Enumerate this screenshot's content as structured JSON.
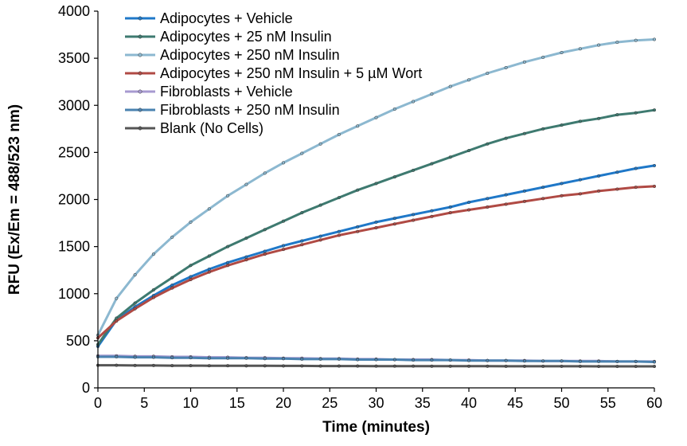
{
  "chart_data": {
    "type": "line",
    "title": "",
    "xlabel": "Time (minutes)",
    "ylabel": "RFU (Ex/Em = 488/523 nm)",
    "xlim": [
      0,
      60
    ],
    "ylim": [
      0,
      4000
    ],
    "x_ticks": [
      0,
      5,
      10,
      15,
      20,
      25,
      30,
      35,
      40,
      45,
      50,
      55,
      60
    ],
    "y_ticks": [
      0,
      500,
      1000,
      1500,
      2000,
      2500,
      3000,
      3500,
      4000
    ],
    "grid": false,
    "legend_position": "top-left",
    "marker": "small-circle",
    "x": [
      0,
      2,
      4,
      6,
      8,
      10,
      12,
      14,
      16,
      18,
      20,
      22,
      24,
      26,
      28,
      30,
      32,
      34,
      36,
      38,
      40,
      42,
      44,
      46,
      48,
      50,
      52,
      54,
      56,
      58,
      60
    ],
    "series": [
      {
        "name": "Adipocytes + Vehicle",
        "color": "#1f78c8",
        "values": [
          440,
          720,
          860,
          980,
          1090,
          1180,
          1260,
          1330,
          1390,
          1450,
          1510,
          1560,
          1610,
          1660,
          1710,
          1760,
          1800,
          1840,
          1880,
          1920,
          1970,
          2010,
          2050,
          2090,
          2130,
          2170,
          2210,
          2250,
          2290,
          2330,
          2360
        ]
      },
      {
        "name": "Adipocytes + 25 nM Insulin",
        "color": "#3e7a70",
        "values": [
          460,
          740,
          900,
          1040,
          1170,
          1300,
          1400,
          1500,
          1590,
          1680,
          1770,
          1860,
          1940,
          2020,
          2100,
          2170,
          2240,
          2310,
          2380,
          2450,
          2520,
          2590,
          2650,
          2700,
          2750,
          2790,
          2830,
          2860,
          2900,
          2920,
          2950
        ]
      },
      {
        "name": "Adipocytes + 250 nM Insulin",
        "color": "#8cb8d0",
        "values": [
          560,
          950,
          1200,
          1420,
          1600,
          1760,
          1900,
          2040,
          2160,
          2280,
          2390,
          2490,
          2590,
          2690,
          2780,
          2870,
          2960,
          3040,
          3120,
          3200,
          3270,
          3340,
          3400,
          3460,
          3510,
          3560,
          3600,
          3640,
          3670,
          3690,
          3700
        ]
      },
      {
        "name": "Adipocytes + 250 nM Insulin + 5 µM Wort",
        "color": "#b04a44",
        "values": [
          530,
          710,
          840,
          960,
          1060,
          1150,
          1230,
          1300,
          1360,
          1420,
          1470,
          1520,
          1570,
          1620,
          1660,
          1700,
          1740,
          1780,
          1820,
          1860,
          1890,
          1920,
          1950,
          1980,
          2010,
          2040,
          2060,
          2090,
          2110,
          2130,
          2140
        ]
      },
      {
        "name": "Fibroblasts + Vehicle",
        "color": "#a79ad0",
        "values": [
          340,
          340,
          335,
          335,
          330,
          330,
          325,
          325,
          320,
          320,
          315,
          315,
          310,
          310,
          305,
          305,
          300,
          300,
          300,
          295,
          295,
          290,
          290,
          290,
          285,
          285,
          285,
          285,
          280,
          280,
          280
        ]
      },
      {
        "name": "Fibroblasts + 250 nM Insulin",
        "color": "#4a82b0",
        "values": [
          330,
          330,
          325,
          325,
          320,
          320,
          315,
          315,
          315,
          310,
          310,
          305,
          305,
          305,
          300,
          300,
          300,
          295,
          295,
          295,
          290,
          290,
          290,
          285,
          285,
          285,
          280,
          280,
          280,
          280,
          275
        ]
      },
      {
        "name": "Blank (No Cells)",
        "color": "#555555",
        "values": [
          240,
          240,
          238,
          238,
          236,
          236,
          235,
          235,
          234,
          234,
          233,
          233,
          232,
          232,
          232,
          231,
          231,
          231,
          230,
          230,
          230,
          230,
          229,
          229,
          229,
          229,
          229,
          228,
          228,
          228,
          228
        ]
      }
    ]
  }
}
